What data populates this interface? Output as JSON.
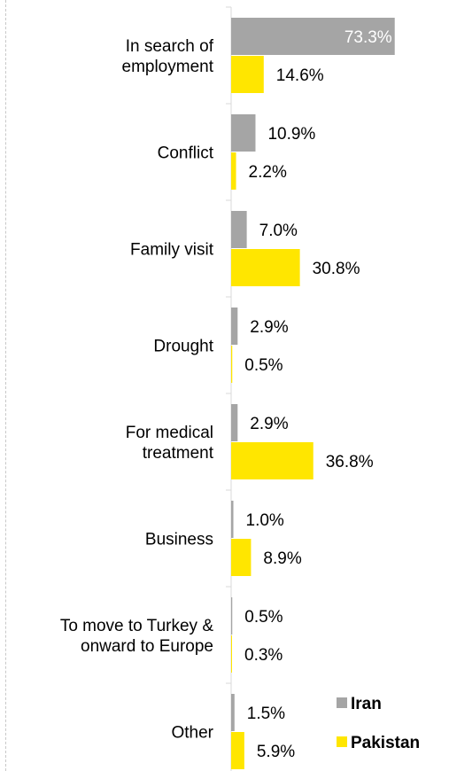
{
  "chart_data": {
    "type": "bar",
    "orientation": "horizontal",
    "categories": [
      "In search of employment",
      "Conflict",
      "Family visit",
      "Drought",
      "For medical treatment",
      "Business",
      "To move to Turkey & onward to Europe",
      "Other"
    ],
    "category_lines": [
      [
        "In search of",
        "employment"
      ],
      [
        "Conflict"
      ],
      [
        "Family visit"
      ],
      [
        "Drought"
      ],
      [
        "For medical",
        "treatment"
      ],
      [
        "Business"
      ],
      [
        "To move to Turkey &",
        "onward to Europe"
      ],
      [
        "Other"
      ]
    ],
    "series": [
      {
        "name": "Iran",
        "color": "#a5a5a5",
        "values": [
          73.3,
          10.9,
          7.0,
          2.9,
          2.9,
          1.0,
          0.5,
          1.5
        ],
        "labels": [
          "73.3%",
          "10.9%",
          "7.0%",
          "2.9%",
          "2.9%",
          "1.0%",
          "0.5%",
          "1.5%"
        ]
      },
      {
        "name": "Pakistan",
        "color": "#ffe600",
        "values": [
          14.6,
          2.2,
          30.8,
          0.5,
          36.8,
          8.9,
          0.3,
          5.9
        ],
        "labels": [
          "14.6%",
          "2.2%",
          "30.8%",
          "0.5%",
          "36.8%",
          "8.9%",
          "0.3%",
          "5.9%"
        ]
      }
    ],
    "xlim": [
      0,
      75
    ],
    "grid": false,
    "legend_position": "bottom-right"
  }
}
